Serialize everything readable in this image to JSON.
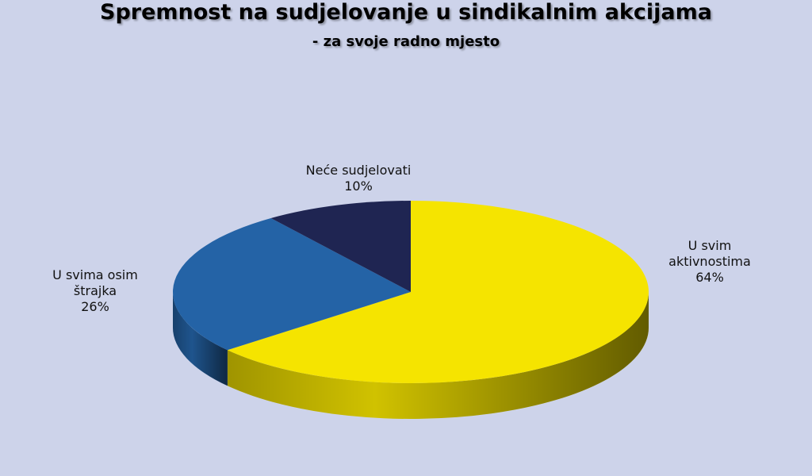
{
  "chart_data": {
    "type": "pie",
    "title": "Spremnost na sudjelovanje u sindikalnim akcijama",
    "subtitle": "- za svoje radno mjesto",
    "categories": [
      "U svim aktivnostima",
      "U svima osim štrajka",
      "Neće sudjelovati"
    ],
    "values": [
      64,
      26,
      10
    ],
    "value_labels": [
      "64%",
      "26%",
      "10%"
    ],
    "colors": [
      "#f5e400",
      "#2463a6",
      "#1f2552"
    ]
  }
}
